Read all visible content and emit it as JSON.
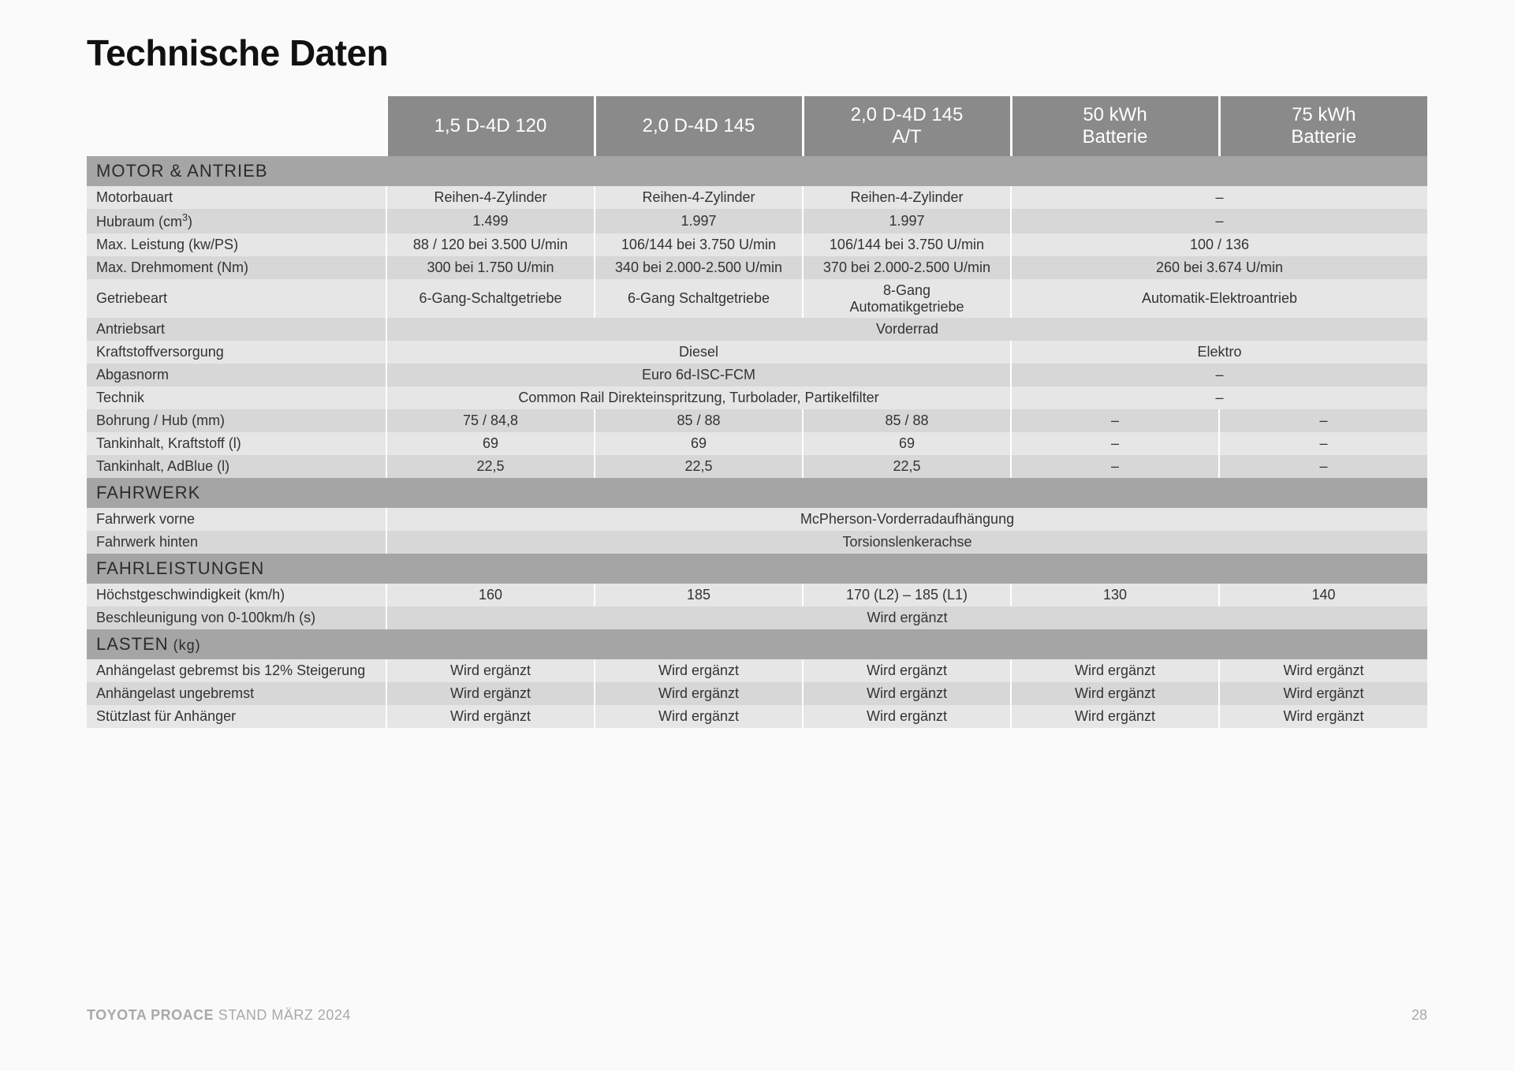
{
  "title": "Technische Daten",
  "colors": {
    "header_bg": "#8a8a8a",
    "header_fg": "#ffffff",
    "section_bg": "#a5a5a5",
    "row_even": "#e6e6e6",
    "row_odd": "#d7d7d7",
    "text": "#333333",
    "footer": "#a9a9a9"
  },
  "variants": [
    "1,5 D-4D 120",
    "2,0 D-4D 145",
    "2,0 D-4D 145 A/T",
    "50 kWh Batterie",
    "75 kWh Batterie"
  ],
  "sections": [
    {
      "label": "MOTOR & ANTRIEB",
      "rows": [
        {
          "label": "Motorbauart",
          "cells": [
            {
              "v": "Reihen-4-Zylinder",
              "span": 1
            },
            {
              "v": "Reihen-4-Zylinder",
              "span": 1
            },
            {
              "v": "Reihen-4-Zylinder",
              "span": 1
            },
            {
              "v": "–",
              "span": 2
            }
          ]
        },
        {
          "label": "Hubraum (cm³)",
          "label_html": "Hubraum (cm<sup>3</sup>)",
          "cells": [
            {
              "v": "1.499",
              "span": 1
            },
            {
              "v": "1.997",
              "span": 1
            },
            {
              "v": "1.997",
              "span": 1
            },
            {
              "v": "–",
              "span": 2
            }
          ]
        },
        {
          "label": "Max. Leistung (kw/PS)",
          "cells": [
            {
              "v": "88 / 120 bei 3.500 U/min",
              "span": 1
            },
            {
              "v": "106/144 bei 3.750 U/min",
              "span": 1
            },
            {
              "v": "106/144 bei 3.750 U/min",
              "span": 1
            },
            {
              "v": "100 / 136",
              "span": 2
            }
          ]
        },
        {
          "label": "Max. Drehmoment (Nm)",
          "cells": [
            {
              "v": "300 bei 1.750 U/min",
              "span": 1
            },
            {
              "v": "340 bei 2.000-2.500 U/min",
              "span": 1
            },
            {
              "v": "370 bei 2.000-2.500 U/min",
              "span": 1
            },
            {
              "v": "260 bei 3.674 U/min",
              "span": 2
            }
          ]
        },
        {
          "label": "Getriebeart",
          "tall": true,
          "cells": [
            {
              "v": "6-Gang-Schaltgetriebe",
              "span": 1
            },
            {
              "v": "6-Gang Schaltgetriebe",
              "span": 1
            },
            {
              "v": "8-Gang Automatikgetriebe",
              "span": 1,
              "wrap": true
            },
            {
              "v": "Automatik-Elektroantrieb",
              "span": 2
            }
          ]
        },
        {
          "label": "Antriebsart",
          "cells": [
            {
              "v": "Vorderrad",
              "span": 5
            }
          ]
        },
        {
          "label": "Kraftstoffversorgung",
          "cells": [
            {
              "v": "Diesel",
              "span": 3
            },
            {
              "v": "Elektro",
              "span": 2
            }
          ]
        },
        {
          "label": "Abgasnorm",
          "cells": [
            {
              "v": "Euro 6d-ISC-FCM",
              "span": 3
            },
            {
              "v": "–",
              "span": 2
            }
          ]
        },
        {
          "label": "Technik",
          "cells": [
            {
              "v": "Common Rail Direkteinspritzung, Turbolader, Partikelfilter",
              "span": 3
            },
            {
              "v": "–",
              "span": 2
            }
          ]
        },
        {
          "label": "Bohrung / Hub (mm)",
          "cells": [
            {
              "v": "75 / 84,8",
              "span": 1
            },
            {
              "v": "85 / 88",
              "span": 1
            },
            {
              "v": "85 / 88",
              "span": 1
            },
            {
              "v": "–",
              "span": 1
            },
            {
              "v": "–",
              "span": 1
            }
          ]
        },
        {
          "label": "Tankinhalt, Kraftstoff (l)",
          "cells": [
            {
              "v": "69",
              "span": 1
            },
            {
              "v": "69",
              "span": 1
            },
            {
              "v": "69",
              "span": 1
            },
            {
              "v": "–",
              "span": 1
            },
            {
              "v": "–",
              "span": 1
            }
          ]
        },
        {
          "label": "Tankinhalt, AdBlue (l)",
          "cells": [
            {
              "v": "22,5",
              "span": 1
            },
            {
              "v": "22,5",
              "span": 1
            },
            {
              "v": "22,5",
              "span": 1
            },
            {
              "v": "–",
              "span": 1
            },
            {
              "v": "–",
              "span": 1
            }
          ]
        }
      ]
    },
    {
      "label": "FAHRWERK",
      "rows": [
        {
          "label": "Fahrwerk vorne",
          "cells": [
            {
              "v": "McPherson-Vorderradaufhängung",
              "span": 5
            }
          ]
        },
        {
          "label": "Fahrwerk hinten",
          "cells": [
            {
              "v": "Torsionslenkerachse",
              "span": 5
            }
          ]
        }
      ]
    },
    {
      "label": "FAHRLEISTUNGEN",
      "rows": [
        {
          "label": "Höchstgeschwindigkeit (km/h)",
          "cells": [
            {
              "v": "160",
              "span": 1
            },
            {
              "v": "185",
              "span": 1
            },
            {
              "v": "170 (L2) – 185 (L1)",
              "span": 1
            },
            {
              "v": "130",
              "span": 1
            },
            {
              "v": "140",
              "span": 1
            }
          ]
        },
        {
          "label": "Beschleunigung von 0-100km/h (s)",
          "cells": [
            {
              "v": "Wird ergänzt",
              "span": 5
            }
          ]
        }
      ]
    },
    {
      "label": "LASTEN",
      "unit": "(kg)",
      "rows": [
        {
          "label": "Anhängelast gebremst bis 12% Steigerung",
          "cells": [
            {
              "v": "Wird ergänzt",
              "span": 1
            },
            {
              "v": "Wird ergänzt",
              "span": 1
            },
            {
              "v": "Wird ergänzt",
              "span": 1
            },
            {
              "v": "Wird ergänzt",
              "span": 1
            },
            {
              "v": "Wird ergänzt",
              "span": 1
            }
          ]
        },
        {
          "label": "Anhängelast ungebremst",
          "cells": [
            {
              "v": "Wird ergänzt",
              "span": 1
            },
            {
              "v": "Wird ergänzt",
              "span": 1
            },
            {
              "v": "Wird ergänzt",
              "span": 1
            },
            {
              "v": "Wird ergänzt",
              "span": 1
            },
            {
              "v": "Wird ergänzt",
              "span": 1
            }
          ]
        },
        {
          "label": "Stützlast für Anhänger",
          "cells": [
            {
              "v": "Wird ergänzt",
              "span": 1
            },
            {
              "v": "Wird ergänzt",
              "span": 1
            },
            {
              "v": "Wird ergänzt",
              "span": 1
            },
            {
              "v": "Wird ergänzt",
              "span": 1
            },
            {
              "v": "Wird ergänzt",
              "span": 1
            }
          ]
        }
      ]
    }
  ],
  "footer": {
    "bold": "TOYOTA PROACE",
    "rest": " STAND MÄRZ 2024",
    "page": "28"
  }
}
